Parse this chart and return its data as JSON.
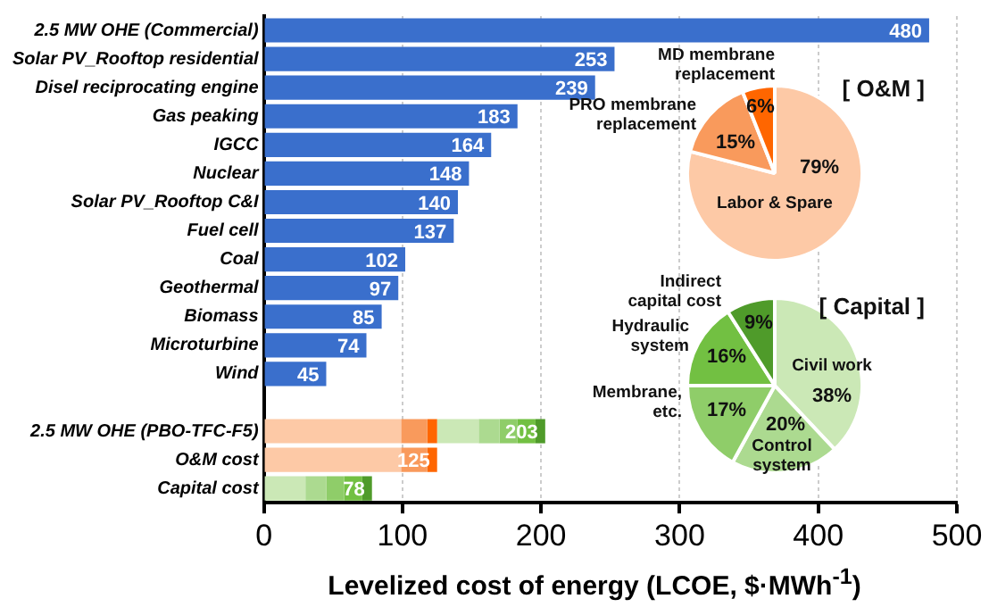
{
  "chart_data": [
    {
      "type": "bar",
      "orientation": "horizontal",
      "stacked": true,
      "categories": [
        "2.5 MW OHE (Commercial)",
        "Solar PV_Rooftop residential",
        "Disel reciprocating engine",
        "Gas peaking",
        "IGCC",
        "Nuclear",
        "Solar PV_Rooftop C&I",
        "Fuel cell",
        "Coal",
        "Geothermal",
        "Biomass",
        "Microturbine",
        "Wind",
        null,
        "2.5 MW OHE (PBO-TFC-F5)",
        "O&M cost",
        "Capital cost"
      ],
      "series": [
        {
          "color": "#3a6fcc",
          "values": [
            480,
            253,
            239,
            183,
            164,
            148,
            140,
            137,
            102,
            97,
            85,
            74,
            45,
            null,
            null,
            null,
            null
          ]
        },
        {
          "color": "#fdc9a6",
          "values": [
            null,
            null,
            null,
            null,
            null,
            null,
            null,
            null,
            null,
            null,
            null,
            null,
            null,
            null,
            99,
            99,
            null
          ]
        },
        {
          "color": "#f99a5c",
          "values": [
            null,
            null,
            null,
            null,
            null,
            null,
            null,
            null,
            null,
            null,
            null,
            null,
            null,
            null,
            19,
            19,
            null
          ]
        },
        {
          "color": "#ff6600",
          "values": [
            null,
            null,
            null,
            null,
            null,
            null,
            null,
            null,
            null,
            null,
            null,
            null,
            null,
            null,
            7,
            7,
            null
          ]
        },
        {
          "color": "#cbe8b6",
          "values": [
            null,
            null,
            null,
            null,
            null,
            null,
            null,
            null,
            null,
            null,
            null,
            null,
            null,
            null,
            30,
            null,
            30
          ]
        },
        {
          "color": "#acda90",
          "values": [
            null,
            null,
            null,
            null,
            null,
            null,
            null,
            null,
            null,
            null,
            null,
            null,
            null,
            null,
            15,
            null,
            15
          ]
        },
        {
          "color": "#8fcd69",
          "values": [
            null,
            null,
            null,
            null,
            null,
            null,
            null,
            null,
            null,
            null,
            null,
            null,
            null,
            null,
            13,
            null,
            13
          ]
        },
        {
          "color": "#72c042",
          "values": [
            null,
            null,
            null,
            null,
            null,
            null,
            null,
            null,
            null,
            null,
            null,
            null,
            null,
            null,
            13,
            null,
            13
          ]
        },
        {
          "color": "#4f9b2a",
          "values": [
            null,
            null,
            null,
            null,
            null,
            null,
            null,
            null,
            null,
            null,
            null,
            null,
            null,
            null,
            7,
            null,
            7
          ]
        }
      ],
      "totals": [
        "480",
        "253",
        "239",
        "183",
        "164",
        "148",
        "140",
        "137",
        "102",
        "97",
        "85",
        "74",
        "45",
        null,
        "203",
        "125",
        "78"
      ],
      "xlim": [
        0,
        500
      ],
      "xticks": [
        0,
        100,
        200,
        300,
        400,
        500
      ],
      "xlabel": "Levelized cost of energy (LCOE, $·MWh$^{-1}$)",
      "grid": "x"
    },
    {
      "type": "pie",
      "title": "[ O&M ]",
      "categories": [
        "Labor & Spare",
        "PRO membrane replacement",
        "MD membrane replacement"
      ],
      "values": [
        79,
        15,
        6
      ],
      "colors": [
        "#fdc9a6",
        "#f99a5c",
        "#ff6600"
      ],
      "value_labels": [
        "79%",
        "15%",
        "6%"
      ]
    },
    {
      "type": "pie",
      "title": "[ Capital ]",
      "categories": [
        "Civil work",
        "Control system",
        "Membrane, etc.",
        "Hydraulic system",
        "Indirect capital cost"
      ],
      "values": [
        38,
        20,
        17,
        16,
        9
      ],
      "colors": [
        "#cbe8b6",
        "#acda90",
        "#8fcd69",
        "#72c042",
        "#4f9b2a"
      ],
      "value_labels": [
        "38%",
        "20%",
        "17%",
        "16%",
        "9%"
      ]
    }
  ]
}
